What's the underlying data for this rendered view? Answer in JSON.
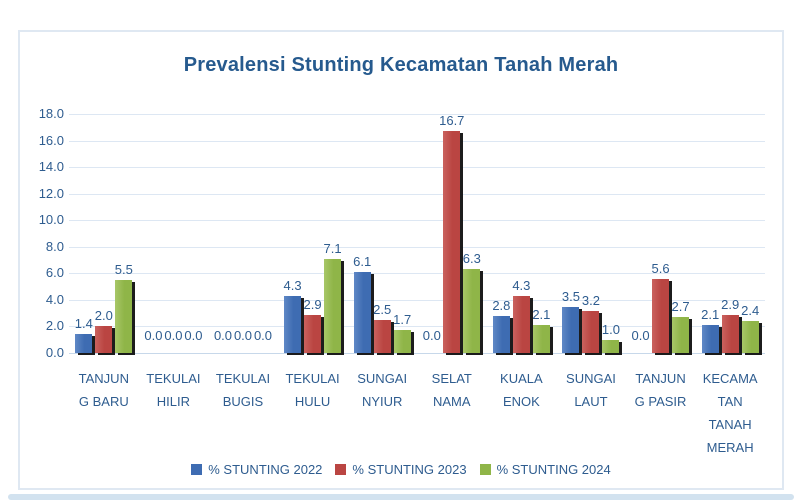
{
  "page": {
    "background": "#ffffff"
  },
  "card": {
    "border_color": "#dfe8f2",
    "background": "#ffffff",
    "shadow_color": "#d2e2ef"
  },
  "chart_data": {
    "type": "bar",
    "title": "Prevalensi Stunting Kecamatan Tanah Merah",
    "title_color": "#265a8e",
    "categories": [
      "TANJUNG BARU",
      "TEKULAI HILIR",
      "TEKULAI BUGIS",
      "TEKULAI HULU",
      "SUNGAI NYIUR",
      "SELAT NAMA",
      "KUALA ENOK",
      "SUNGAI LAUT",
      "TANJUNG PASIR",
      "KECAMATAN TANAH MERAH"
    ],
    "category_display_lines": [
      [
        "TANJUN",
        "G BARU"
      ],
      [
        "TEKULAI",
        "HILIR"
      ],
      [
        "TEKULAI",
        "BUGIS"
      ],
      [
        "TEKULAI",
        "HULU"
      ],
      [
        "SUNGAI",
        "NYIUR"
      ],
      [
        "SELAT",
        "NAMA"
      ],
      [
        "KUALA",
        "ENOK"
      ],
      [
        "SUNGAI",
        "LAUT"
      ],
      [
        "TANJUN",
        "G PASIR"
      ],
      [
        "KECAMA",
        "TAN",
        "TANAH",
        "MERAH"
      ]
    ],
    "series": [
      {
        "name": "% STUNTING 2022",
        "color": "#3e6cb2",
        "color_light": "#5f88c6",
        "values": [
          1.4,
          0.0,
          0.0,
          4.3,
          6.1,
          0.0,
          2.8,
          3.5,
          0.0,
          2.1
        ]
      },
      {
        "name": "% STUNTING 2023",
        "color": "#ba4542",
        "color_light": "#ca625e",
        "values": [
          2.0,
          0.0,
          0.0,
          2.9,
          2.5,
          16.7,
          4.3,
          3.2,
          5.6,
          2.9
        ]
      },
      {
        "name": "% STUNTING 2024",
        "color": "#8fb548",
        "color_light": "#a8c768",
        "values": [
          5.5,
          0.0,
          0.0,
          7.1,
          1.7,
          6.3,
          2.1,
          1.0,
          2.7,
          2.4
        ]
      }
    ],
    "ylim": [
      0,
      18
    ],
    "y_tick_step": 2,
    "y_tick_labels": [
      "0.0",
      "2.0",
      "4.0",
      "6.0",
      "8.0",
      "10.0",
      "12.0",
      "14.0",
      "16.0",
      "18.0"
    ],
    "grid": true,
    "value_labels": true,
    "legend_position": "bottom",
    "axis_text_color": "#2e5c8f",
    "gridline_color": "#dde7f3",
    "baseline_color": "#c7d8ea",
    "bar_shadow_color": "#111111"
  }
}
